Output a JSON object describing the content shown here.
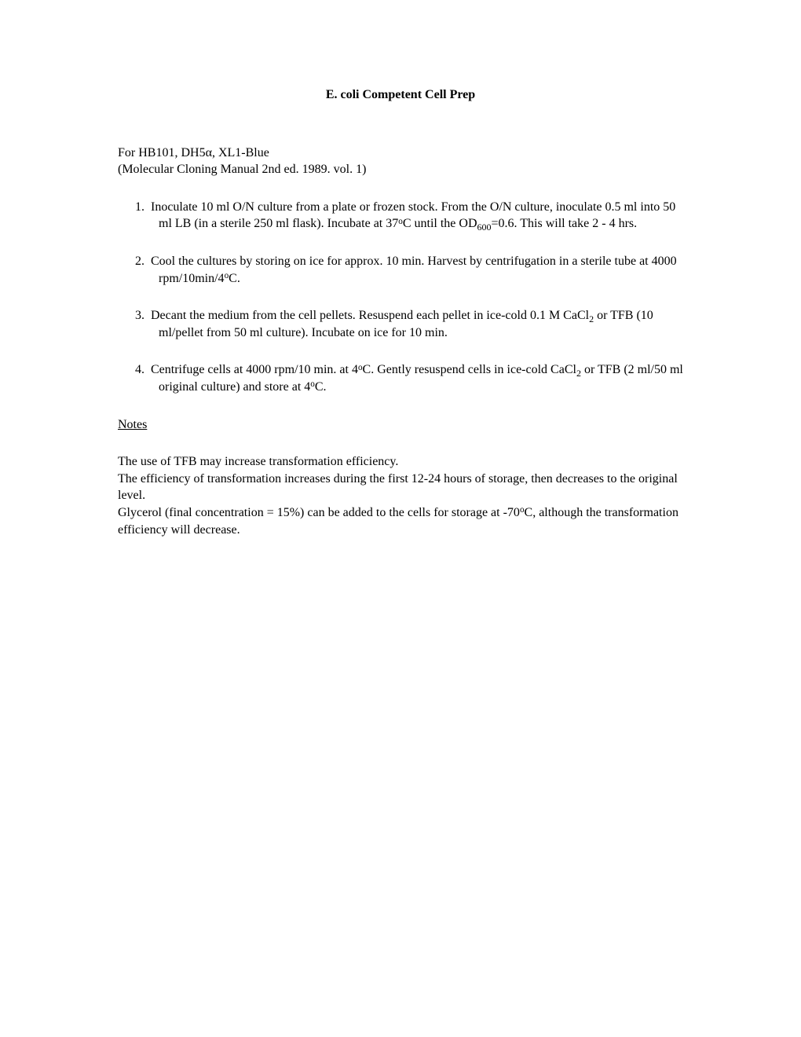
{
  "title": "E. coli Competent Cell Prep",
  "intro": {
    "line1_prefix": "For HB101, DH5",
    "line1_alpha": "α",
    "line1_suffix": ", XL1-Blue",
    "line2": "(Molecular Cloning Manual 2nd ed. 1989. vol. 1)"
  },
  "steps": [
    {
      "num": "1.",
      "t1": "Inoculate 10 ml O/N culture from a plate or frozen stock.  From the O/N culture, inoculate 0.5 ml into 50 ml LB (in a sterile 250 ml flask).  Incubate at 37",
      "sup1": "o",
      "t2": "C until the OD",
      "sub1": "600",
      "t3": "=0.6.  This will take 2 - 4 hrs."
    },
    {
      "num": "2.",
      "t1": "Cool the cultures by storing on ice for approx. 10 min.  Harvest by centrifugation in a sterile tube at 4000 rpm/10min/4",
      "sup1": "o",
      "t2": "C."
    },
    {
      "num": "3.",
      "t1": "Decant the medium from the cell pellets.  Resuspend each pellet in ice-cold 0.1 M CaCl",
      "sub1": "2",
      "t2": " or TFB (10 ml/pellet from 50 ml culture).  Incubate on ice for 10 min."
    },
    {
      "num": "4.",
      "t1": "Centrifuge cells at 4000 rpm/10 min. at 4",
      "sup1": "o",
      "t2": "C.  Gently resuspend cells in ice-cold CaCl",
      "sub1": "2",
      "t3": " or TFB (2 ml/50 ml original culture) and store at 4",
      "sup2": "o",
      "t4": "C."
    }
  ],
  "notes_header": "Notes",
  "notes": {
    "l1": "The use of TFB may increase transformation efficiency.",
    "l2": "The efficiency of transformation increases during the first 12-24 hours of storage, then decreases to the original level.",
    "l3a": "Glycerol (final concentration = 15%) can be added to the cells for storage at -70",
    "l3sup": "o",
    "l3b": "C, although the transformation efficiency will decrease."
  },
  "style": {
    "font_family": "Times New Roman",
    "font_size_pt": 12,
    "background_color": "#ffffff",
    "text_color": "#000000"
  }
}
